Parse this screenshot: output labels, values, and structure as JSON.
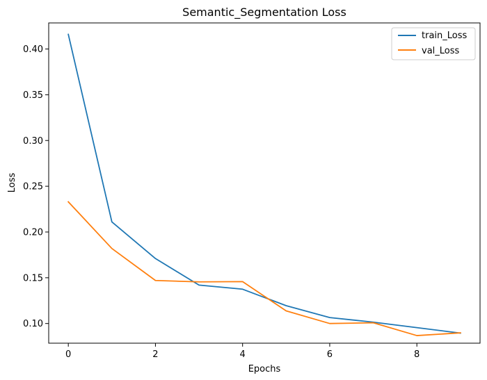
{
  "chart_data": {
    "type": "line",
    "title": "Semantic_Segmentation Loss",
    "xlabel": "Epochs",
    "ylabel": "Loss",
    "x": [
      0,
      1,
      2,
      3,
      4,
      5,
      6,
      7,
      8,
      9
    ],
    "xlim": [
      -0.45,
      9.45
    ],
    "ylim": [
      0.0785,
      0.4285
    ],
    "xticks": [
      0,
      2,
      4,
      6,
      8
    ],
    "yticks": [
      0.1,
      0.15,
      0.2,
      0.25,
      0.3,
      0.35,
      0.4
    ],
    "ytick_labels": [
      "0.10",
      "0.15",
      "0.20",
      "0.25",
      "0.30",
      "0.35",
      "0.40"
    ],
    "grid": false,
    "legend_position": "top-right",
    "series": [
      {
        "name": "train_Loss",
        "color": "#1f77b4",
        "values": [
          0.416,
          0.211,
          0.171,
          0.142,
          0.1375,
          0.1195,
          0.1065,
          0.1015,
          0.0955,
          0.0895
        ]
      },
      {
        "name": "val_Loss",
        "color": "#ff7f0e",
        "values": [
          0.233,
          0.182,
          0.147,
          0.1455,
          0.1458,
          0.1138,
          0.1,
          0.1008,
          0.0868,
          0.0898
        ]
      }
    ]
  }
}
